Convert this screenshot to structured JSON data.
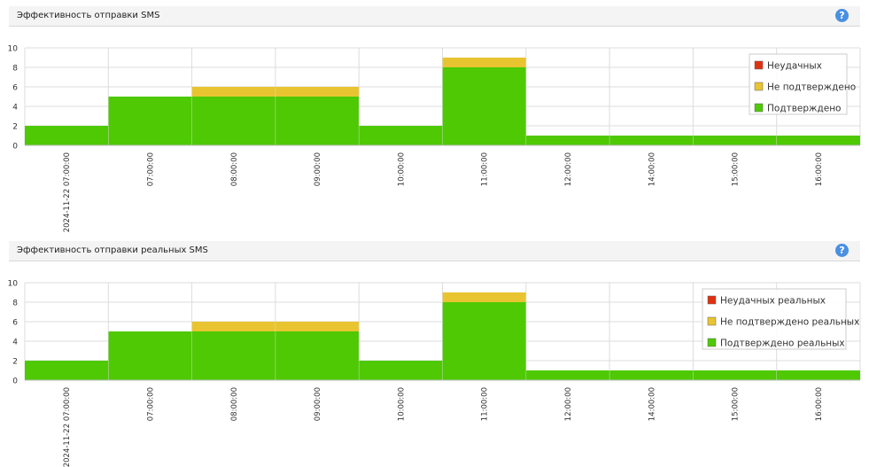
{
  "chart_data": [
    {
      "type": "bar",
      "stacked": true,
      "title": "Эффективность отправки SMS",
      "categories": [
        "2024-11-22 07:00:00",
        "07:00:00",
        "08:00:00",
        "09:00:00",
        "10:00:00",
        "11:00:00",
        "12:00:00",
        "14:00:00",
        "15:00:00",
        "16:00:00"
      ],
      "series": [
        {
          "name": "Неудачных",
          "color": "#e03010",
          "values": [
            0,
            0,
            0,
            0,
            0,
            0,
            0,
            0,
            0,
            0
          ]
        },
        {
          "name": "Не подтверждено",
          "color": "#e8c430",
          "values": [
            0,
            0,
            1,
            1,
            0,
            1,
            0,
            0,
            0,
            0
          ]
        },
        {
          "name": "Подтверждено",
          "color": "#4ec903",
          "values": [
            2,
            5,
            5,
            5,
            2,
            8,
            1,
            1,
            1,
            1
          ]
        }
      ],
      "y_ticks": [
        "0",
        "2",
        "4",
        "6",
        "8",
        "10"
      ],
      "ylim": [
        0,
        10
      ],
      "grid": true,
      "legend_position": "top-right",
      "help_icon": "?"
    },
    {
      "type": "bar",
      "stacked": true,
      "title": "Эффективность отправки реальных SMS",
      "categories": [
        "2024-11-22 07:00:00",
        "07:00:00",
        "08:00:00",
        "09:00:00",
        "10:00:00",
        "11:00:00",
        "12:00:00",
        "14:00:00",
        "15:00:00",
        "16:00:00"
      ],
      "series": [
        {
          "name": "Неудачных реальных",
          "color": "#e03010",
          "values": [
            0,
            0,
            0,
            0,
            0,
            0,
            0,
            0,
            0,
            0
          ]
        },
        {
          "name": "Не подтверждено реальных",
          "color": "#e8c430",
          "values": [
            0,
            0,
            1,
            1,
            0,
            1,
            0,
            0,
            0,
            0
          ]
        },
        {
          "name": "Подтверждено реальных",
          "color": "#4ec903",
          "values": [
            2,
            5,
            5,
            5,
            2,
            8,
            1,
            1,
            1,
            1
          ]
        }
      ],
      "y_ticks": [
        "0",
        "2",
        "4",
        "6",
        "8",
        "10"
      ],
      "ylim": [
        0,
        10
      ],
      "grid": true,
      "legend_position": "top-right",
      "help_icon": "?"
    }
  ]
}
